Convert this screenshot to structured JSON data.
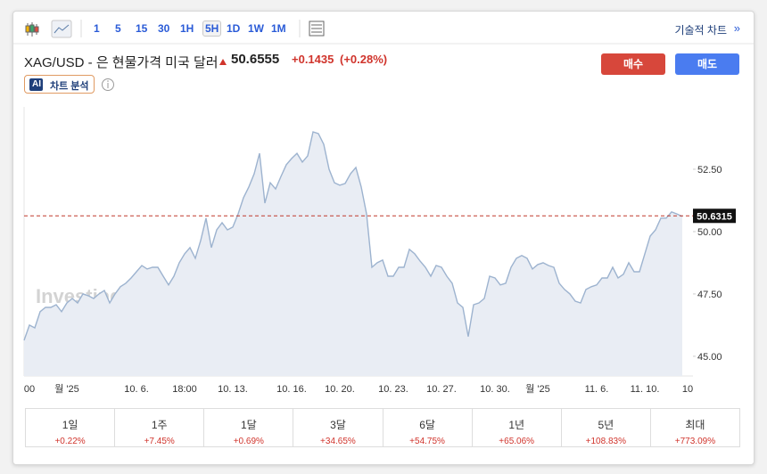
{
  "toolbar": {
    "intervals": [
      "1",
      "5",
      "15",
      "30",
      "1H",
      "5H",
      "1D",
      "1W",
      "1M"
    ],
    "technical_link": "기술적 차트",
    "more": "»"
  },
  "header": {
    "title": "XAG/USD - 은 현물가격 미국 달러",
    "price": "50.6555",
    "change": "+0.1435",
    "change_pct": "(+0.28%)",
    "buy": "매수",
    "sell": "매도",
    "ai_badge": "AI",
    "ai_label": "차트 분석"
  },
  "chart_data": {
    "type": "area",
    "watermark": "Investing.com",
    "categories": [
      null,
      "00",
      null,
      null,
      null,
      null,
      null,
      null,
      "월 '25",
      null,
      null,
      null,
      null,
      null,
      null,
      null,
      null,
      null,
      null,
      null,
      null,
      "10. 6.",
      null,
      null,
      null,
      null,
      null,
      null,
      null,
      null,
      "18:00",
      null,
      null,
      null,
      null,
      null,
      null,
      null,
      null,
      "10. 13.",
      null,
      null,
      null,
      null,
      null,
      null,
      null,
      null,
      null,
      null,
      "10. 16.",
      null,
      null,
      null,
      null,
      null,
      null,
      null,
      null,
      "10. 20.",
      null,
      null,
      null,
      null,
      null,
      null,
      null,
      null,
      null,
      "10. 23.",
      null,
      null,
      null,
      null,
      null,
      null,
      null,
      null,
      "10. 27.",
      null,
      null,
      null,
      null,
      null,
      null,
      null,
      null,
      null,
      "10. 30.",
      null,
      null,
      null,
      null,
      null,
      null,
      null,
      "월 '25",
      null,
      null,
      null,
      null,
      null,
      null,
      null,
      null,
      null,
      null,
      "11. 6.",
      null,
      null,
      null,
      null,
      null,
      null,
      null,
      null,
      "11. 10.",
      null,
      null,
      null,
      null,
      null,
      null,
      null,
      "10",
      null
    ],
    "series": [
      {
        "color": "#9db3cf",
        "values": [
          45.64,
          46.25,
          46.14,
          46.79,
          46.96,
          46.96,
          47.07,
          46.79,
          47.14,
          47.32,
          47.14,
          47.5,
          47.43,
          47.32,
          47.5,
          47.64,
          47.14,
          47.5,
          47.79,
          47.93,
          48.14,
          48.39,
          48.64,
          48.5,
          48.57,
          48.57,
          48.21,
          47.86,
          48.21,
          48.75,
          49.11,
          49.36,
          48.93,
          49.64,
          50.54,
          49.36,
          50.07,
          50.36,
          50.07,
          50.18,
          50.71,
          51.36,
          51.79,
          52.32,
          53.14,
          51.14,
          51.96,
          51.71,
          52.21,
          52.68,
          52.93,
          53.14,
          52.79,
          53.04,
          54.0,
          53.93,
          53.5,
          52.5,
          51.96,
          51.86,
          51.93,
          52.32,
          52.57,
          51.79,
          50.71,
          48.57,
          48.75,
          48.86,
          48.21,
          48.21,
          48.57,
          48.57,
          49.29,
          49.11,
          48.82,
          48.57,
          48.21,
          48.64,
          48.57,
          48.21,
          47.93,
          47.14,
          46.96,
          45.79,
          47.07,
          47.14,
          47.32,
          48.21,
          48.14,
          47.86,
          47.93,
          48.57,
          48.93,
          49.04,
          48.93,
          48.5,
          48.68,
          48.75,
          48.64,
          48.57,
          47.93,
          47.68,
          47.5,
          47.21,
          47.14,
          47.68,
          47.79,
          47.86,
          48.14,
          48.14,
          48.57,
          48.14,
          48.29,
          48.75,
          48.39,
          48.39,
          49.11,
          49.82,
          50.07,
          50.54,
          50.54,
          50.79,
          50.71,
          50.61,
          null,
          null
        ]
      }
    ],
    "fill_color": "#e9edf4",
    "last_price": 50.6315,
    "last_price_color": "#c0392b",
    "ylim": [
      44.21,
      55.0
    ],
    "yticks": [
      {
        "value": 45,
        "label": "45.00"
      },
      {
        "value": 47.5,
        "label": "47.50"
      },
      {
        "value": 50,
        "label": "50.00"
      },
      {
        "value": 52.5,
        "label": "52.50"
      }
    ],
    "grid": false
  },
  "performance": [
    {
      "period": "1일",
      "change": "+0.22%"
    },
    {
      "period": "1주",
      "change": "+7.45%"
    },
    {
      "period": "1달",
      "change": "+0.69%"
    },
    {
      "period": "3달",
      "change": "+34.65%"
    },
    {
      "period": "6달",
      "change": "+54.75%"
    },
    {
      "period": "1년",
      "change": "+65.06%"
    },
    {
      "period": "5년",
      "change": "+108.83%"
    },
    {
      "period": "최대",
      "change": "+773.09%"
    }
  ]
}
